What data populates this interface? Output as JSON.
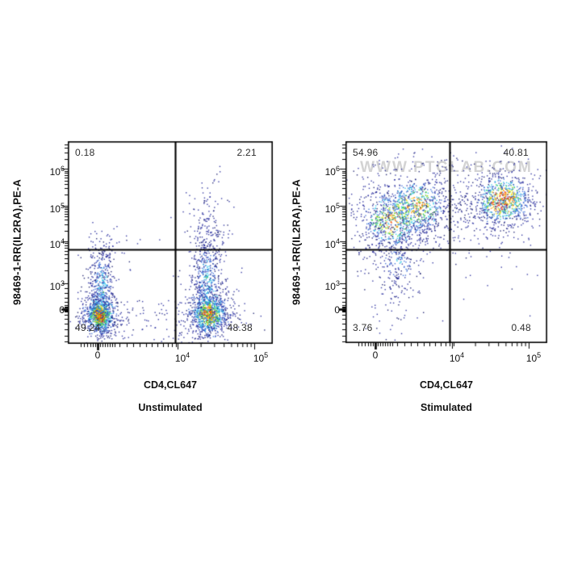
{
  "watermark": {
    "text": "WWW.PTGLAB.COM"
  },
  "colors": {
    "background": "#ffffff",
    "axis": "#000000",
    "text": "#111111",
    "quadrant_label": "#2e2e2e",
    "watermark": "#d3d3d3",
    "density_scale_low_to_high": [
      "#1b2070",
      "#2a2f9e",
      "#3d6fd8",
      "#2fc6e8",
      "#3ecb40",
      "#f8e000",
      "#ff8d0a",
      "#e92c10"
    ]
  },
  "chart_data": [
    {
      "type": "scatter",
      "panel_title": "Unstimulated",
      "xlabel": "CD4,CL647",
      "ylabel": "98469-1-RR(IL2RA),PE-A",
      "x_ticks": [
        "0",
        "10^4",
        "10^5"
      ],
      "y_ticks": [
        "10^6",
        "10^5",
        "10^4",
        "10^3",
        "0"
      ],
      "axis_scale": "biexponential",
      "grid": false,
      "quadrant_percentages": {
        "upper_left": "0.18",
        "upper_right": "2.21",
        "lower_left": "49.24",
        "lower_right": "48.38"
      },
      "gate": {
        "x_divider_fraction": 0.524,
        "y_divider_fraction": 0.466
      },
      "clusters": [
        {
          "n": 650,
          "cx": 0.154,
          "cy": 0.143,
          "sx": 0.028,
          "sy": 0.036,
          "heat": 1.0
        },
        {
          "n": 430,
          "cx": 0.156,
          "cy": 0.15,
          "sx": 0.055,
          "sy": 0.068,
          "heat": 0.42
        },
        {
          "n": 330,
          "cx": 0.162,
          "cy": 0.285,
          "sx": 0.032,
          "sy": 0.105,
          "heat": 0.3
        },
        {
          "n": 70,
          "cx": 0.165,
          "cy": 0.43,
          "sx": 0.045,
          "sy": 0.08,
          "heat": 0.0
        },
        {
          "n": 640,
          "cx": 0.685,
          "cy": 0.147,
          "sx": 0.04,
          "sy": 0.044,
          "heat": 0.8
        },
        {
          "n": 430,
          "cx": 0.685,
          "cy": 0.16,
          "sx": 0.07,
          "sy": 0.088,
          "heat": 0.35
        },
        {
          "n": 390,
          "cx": 0.678,
          "cy": 0.32,
          "sx": 0.036,
          "sy": 0.118,
          "heat": 0.3
        },
        {
          "n": 150,
          "cx": 0.678,
          "cy": 0.53,
          "sx": 0.047,
          "sy": 0.1,
          "heat": 0.1
        },
        {
          "n": 28,
          "cx": 0.685,
          "cy": 0.73,
          "sx": 0.055,
          "sy": 0.075,
          "heat": 0.0
        },
        {
          "n": 140,
          "cx": 0.42,
          "cy": 0.13,
          "sx": 0.25,
          "sy": 0.06,
          "heat": 0.0
        },
        {
          "n": 14,
          "cx": 0.26,
          "cy": 0.51,
          "sx": 0.1,
          "sy": 0.05,
          "heat": 0.0
        }
      ]
    },
    {
      "type": "scatter",
      "panel_title": "Stimulated",
      "xlabel": "CD4,CL647",
      "ylabel": "98469-1-RR(IL2RA),PE-A",
      "x_ticks": [
        "0",
        "10^4",
        "10^5"
      ],
      "y_ticks": [
        "10^6",
        "10^5",
        "10^4",
        "10^3",
        "0"
      ],
      "axis_scale": "biexponential",
      "grid": false,
      "quadrant_percentages": {
        "upper_left": "54.96",
        "upper_right": "40.81",
        "lower_left": "3.76",
        "lower_right": "0.48"
      },
      "gate": {
        "x_divider_fraction": 0.516,
        "y_divider_fraction": 0.466
      },
      "clusters": [
        {
          "n": 500,
          "cx": 0.228,
          "cy": 0.614,
          "sx": 0.082,
          "sy": 0.078,
          "heat": 0.6
        },
        {
          "n": 500,
          "cx": 0.348,
          "cy": 0.681,
          "sx": 0.082,
          "sy": 0.07,
          "heat": 0.6
        },
        {
          "n": 340,
          "cx": 0.285,
          "cy": 0.64,
          "sx": 0.145,
          "sy": 0.115,
          "heat": 0.18
        },
        {
          "n": 150,
          "cx": 0.256,
          "cy": 0.4,
          "sx": 0.06,
          "sy": 0.072,
          "heat": 0.22
        },
        {
          "n": 60,
          "cx": 0.25,
          "cy": 0.29,
          "sx": 0.052,
          "sy": 0.095,
          "heat": 0.0
        },
        {
          "n": 18,
          "cx": 0.2,
          "cy": 0.105,
          "sx": 0.1,
          "sy": 0.055,
          "heat": 0.0
        },
        {
          "n": 580,
          "cx": 0.776,
          "cy": 0.71,
          "sx": 0.066,
          "sy": 0.06,
          "heat": 0.85
        },
        {
          "n": 340,
          "cx": 0.79,
          "cy": 0.69,
          "sx": 0.108,
          "sy": 0.09,
          "heat": 0.25
        },
        {
          "n": 140,
          "cx": 0.52,
          "cy": 0.63,
          "sx": 0.118,
          "sy": 0.082,
          "heat": 0.1
        },
        {
          "n": 24,
          "cx": 0.75,
          "cy": 0.33,
          "sx": 0.12,
          "sy": 0.11,
          "heat": 0.0
        },
        {
          "n": 70,
          "cx": 0.48,
          "cy": 0.87,
          "sx": 0.24,
          "sy": 0.045,
          "heat": 0.0
        },
        {
          "n": 55,
          "cx": 0.12,
          "cy": 0.55,
          "sx": 0.058,
          "sy": 0.115,
          "heat": 0.0
        }
      ]
    }
  ]
}
